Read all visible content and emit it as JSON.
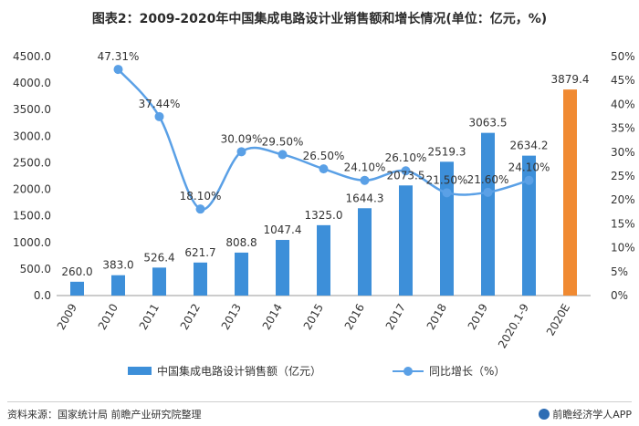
{
  "title": "图表2：2009-2020年中国集成电路设计业销售额和增长情况(单位：亿元，%)",
  "source": "资料来源：国家统计局 前瞻产业研究院整理",
  "brand": "前瞻经济学人APP",
  "colors": {
    "bar": "#3d8fd9",
    "bar_estimate": "#f08a32",
    "line": "#5aa0e6",
    "axis_text": "#333333"
  },
  "chart_data": {
    "type": "bar",
    "categories": [
      "2009",
      "2010",
      "2011",
      "2012",
      "2013",
      "2014",
      "2015",
      "2016",
      "2017",
      "2018",
      "2019",
      "2020.1-9",
      "2020E"
    ],
    "series": [
      {
        "name": "中国集成电路设计销售额（亿元）",
        "type": "bar",
        "axis": "left",
        "values": [
          260.0,
          383.0,
          526.4,
          621.7,
          808.8,
          1047.4,
          1325.0,
          1644.3,
          2073.5,
          2519.3,
          3063.5,
          2634.2,
          3879.4
        ],
        "labels": [
          "260.0",
          "383.0",
          "526.4",
          "621.7",
          "808.8",
          "1047.4",
          "1325.0",
          "1644.3",
          "2073.5",
          "2519.3",
          "3063.5",
          "2634.2",
          "3879.4"
        ]
      },
      {
        "name": "同比增长（%）",
        "type": "line",
        "axis": "right",
        "values": [
          null,
          47.31,
          37.44,
          18.1,
          30.09,
          29.5,
          26.5,
          24.1,
          26.1,
          21.5,
          21.6,
          24.1,
          null
        ],
        "labels": [
          "",
          "47.31%",
          "37.44%",
          "18.10%",
          "30.09%",
          "29.50%",
          "26.50%",
          "24.10%",
          "26.10%",
          "21.50%",
          "21.60%",
          "24.10%",
          ""
        ]
      }
    ],
    "left_axis": {
      "min": 0,
      "max": 4500,
      "step": 500,
      "tick_labels": [
        "0.0",
        "500.0",
        "1000.0",
        "1500.0",
        "2000.0",
        "2500.0",
        "3000.0",
        "3500.0",
        "4000.0",
        "4500.0"
      ]
    },
    "right_axis": {
      "min": 0,
      "max": 50,
      "step": 5,
      "tick_labels": [
        "0%",
        "5%",
        "10%",
        "15%",
        "20%",
        "25%",
        "30%",
        "35%",
        "40%",
        "45%",
        "50%"
      ]
    },
    "estimate_index": 12,
    "grid": false,
    "legend_position": "bottom"
  }
}
